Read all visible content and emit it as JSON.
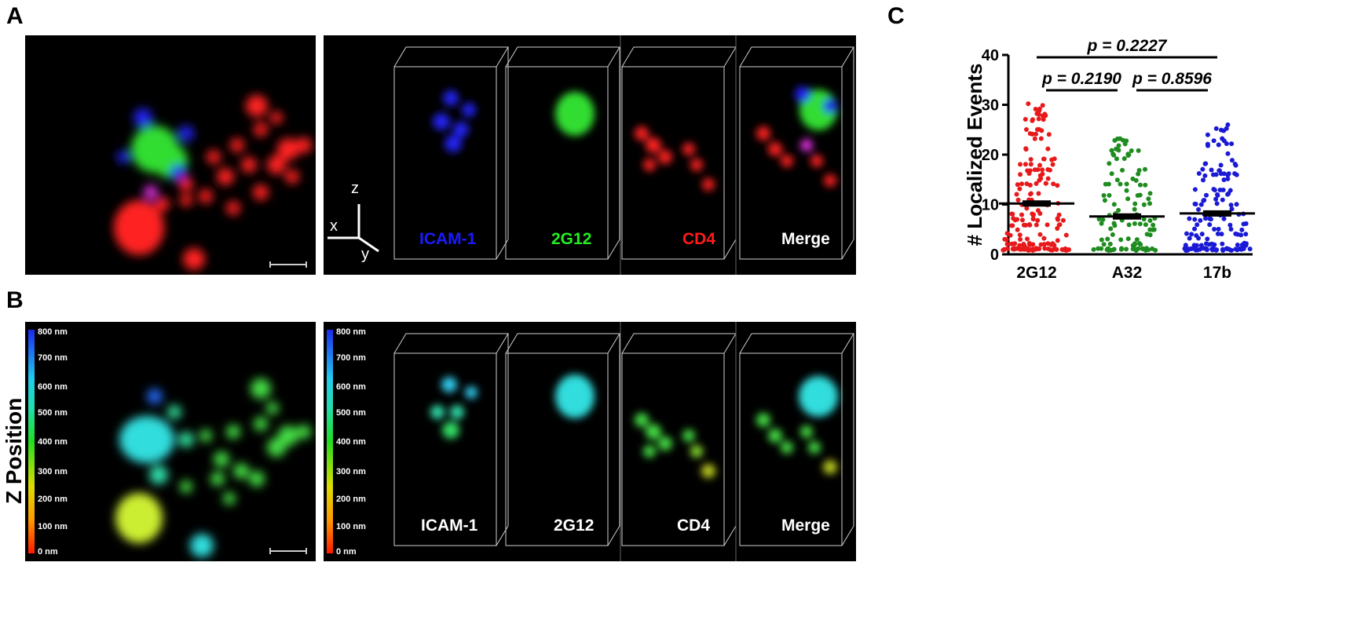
{
  "figure": {
    "panels": [
      "A",
      "B",
      "C"
    ],
    "panel_a": {
      "legend": [
        {
          "label": "ICAM-1",
          "color": "#1a1aff"
        },
        {
          "label": "CD4",
          "color": "#ff1a1a"
        },
        {
          "label": "2G12",
          "color": "#22ee22"
        }
      ],
      "axes": {
        "x": "x",
        "y": "y",
        "z": "z"
      },
      "boxes": [
        {
          "label": "ICAM-1",
          "color": "#1a1aff"
        },
        {
          "label": "2G12",
          "color": "#22ee22"
        },
        {
          "label": "CD4",
          "color": "#ff1a1a"
        },
        {
          "label": "Merge",
          "color": "#ffffff"
        }
      ]
    },
    "panel_b": {
      "ylabel": "Z Position",
      "colorbar_ticks": [
        "800 nm",
        "700 nm",
        "600 nm",
        "500 nm",
        "400 nm",
        "300 nm",
        "200 nm",
        "100 nm",
        "0 nm"
      ],
      "boxes": [
        {
          "label": "ICAM-1",
          "color": "#ffffff"
        },
        {
          "label": "2G12",
          "color": "#ffffff"
        },
        {
          "label": "CD4",
          "color": "#ffffff"
        },
        {
          "label": "Merge",
          "color": "#ffffff"
        }
      ]
    }
  },
  "chart_data": {
    "type": "scatter",
    "subtype": "dot-plot",
    "ylabel": "# Localized Events",
    "ylim": [
      0,
      40
    ],
    "yticks": [
      "0",
      "10",
      "20",
      "30",
      "40"
    ],
    "categories": [
      "2G12",
      "A32",
      "17b"
    ],
    "series": [
      {
        "name": "2G12",
        "color": "#e8191a",
        "mean": 10.2,
        "max": 30
      },
      {
        "name": "A32",
        "color": "#1e8c1e",
        "mean": 7.6,
        "max": 24
      },
      {
        "name": "17b",
        "color": "#1a1ad6",
        "mean": 8.2,
        "max": 26
      }
    ],
    "comparisons": [
      {
        "from": "2G12",
        "to": "17b",
        "label": "p = 0.2227"
      },
      {
        "from": "2G12",
        "to": "A32",
        "label": "p = 0.2190"
      },
      {
        "from": "A32",
        "to": "17b",
        "label": "p = 0.8596"
      }
    ]
  }
}
